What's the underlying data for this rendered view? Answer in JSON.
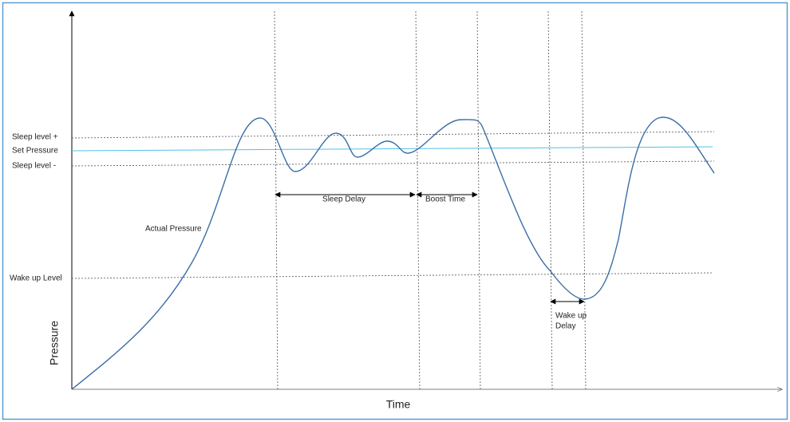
{
  "axes": {
    "y_label": "Pressure",
    "x_label": "Time"
  },
  "levels": {
    "sleep_level_plus": "Sleep level +",
    "set_pressure": "Set Pressure",
    "sleep_level_minus": "Sleep level -",
    "wake_up_level": "Wake up Level"
  },
  "curve_label": "Actual Pressure",
  "intervals": {
    "sleep_delay": "Sleep Delay",
    "boost_time": "Boost Time",
    "wake_up_delay": [
      "Wake up",
      "Delay"
    ]
  }
}
